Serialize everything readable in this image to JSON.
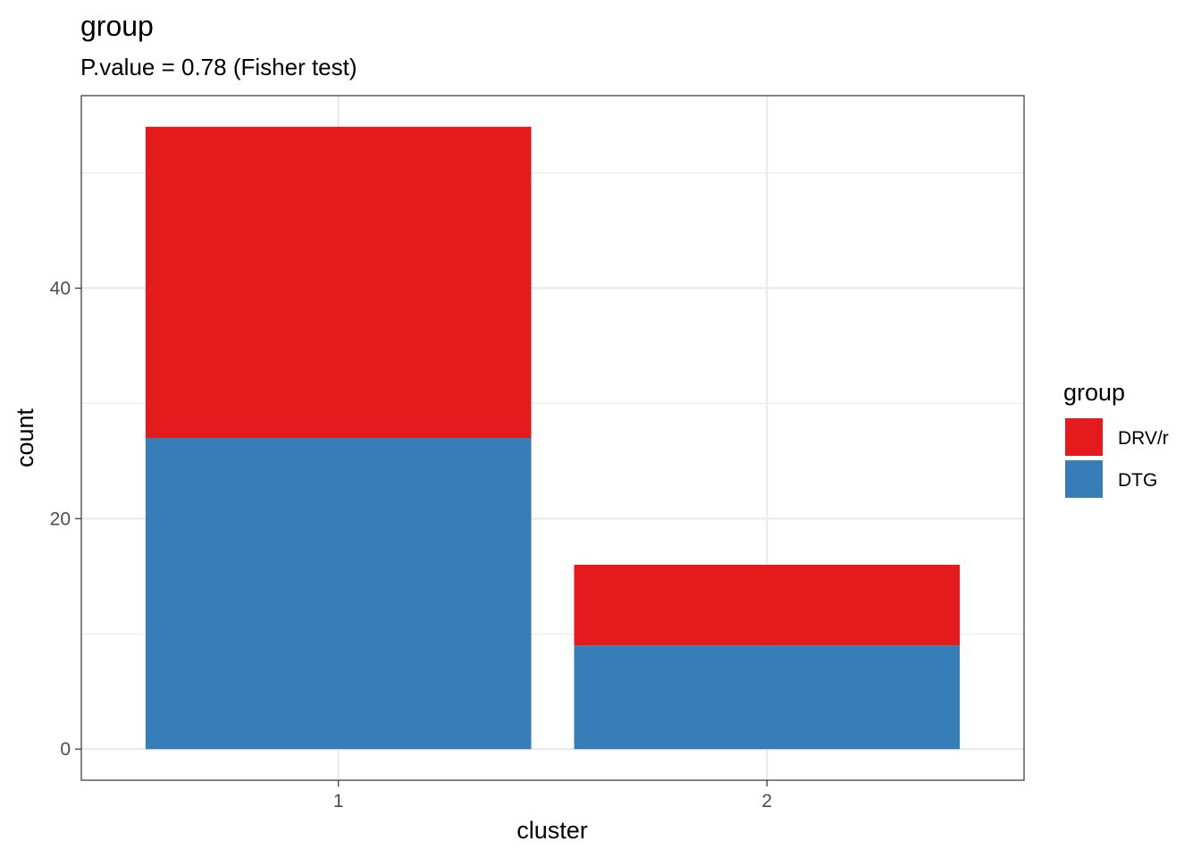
{
  "chart_data": {
    "type": "bar",
    "stacked": true,
    "title": "group",
    "subtitle": "P.value = 0.78 (Fisher test)",
    "xlabel": "cluster",
    "ylabel": "count",
    "categories": [
      "1",
      "2"
    ],
    "series": [
      {
        "name": "DTG",
        "color": "#377EB8",
        "values": [
          27,
          9
        ]
      },
      {
        "name": "DRV/r",
        "color": "#E41A1C",
        "values": [
          27,
          7
        ]
      }
    ],
    "ylim": [
      -2.7,
      56.7
    ],
    "yticks": [
      0,
      20,
      40
    ],
    "grid": true,
    "legend": {
      "title": "group",
      "position": "right",
      "entries": [
        {
          "name": "DRV/r",
          "color": "#E41A1C"
        },
        {
          "name": "DTG",
          "color": "#377EB8"
        }
      ]
    }
  }
}
